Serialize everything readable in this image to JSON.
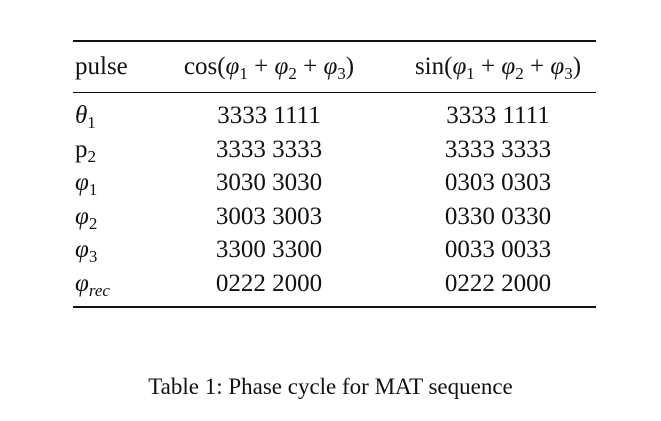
{
  "table": {
    "headers": {
      "pulse": "pulse",
      "cos": {
        "fn": "cos(",
        "close": ")"
      },
      "sin": {
        "fn": "sin(",
        "close": ")"
      }
    },
    "rows": [
      {
        "label": {
          "base": "θ",
          "sub": "1",
          "italic": true
        },
        "cos": "3333 1111",
        "sin": "3333 1111"
      },
      {
        "label": {
          "base": "p",
          "sub": "2",
          "italic": false
        },
        "cos": "3333 3333",
        "sin": "3333 3333"
      },
      {
        "label": {
          "base": "φ",
          "sub": "1",
          "italic": true
        },
        "cos": "3030 3030",
        "sin": "0303 0303"
      },
      {
        "label": {
          "base": "φ",
          "sub": "2",
          "italic": true
        },
        "cos": "3003 3003",
        "sin": "0330 0330"
      },
      {
        "label": {
          "base": "φ",
          "sub": "3",
          "italic": true
        },
        "cos": "3300 3300",
        "sin": "0033 0033"
      },
      {
        "label": {
          "base": "φ",
          "sub": "rec",
          "italic": true
        },
        "cos": "0222 2000",
        "sin": "0222 2000"
      }
    ]
  },
  "caption": "Table 1: Phase cycle for MAT sequence"
}
